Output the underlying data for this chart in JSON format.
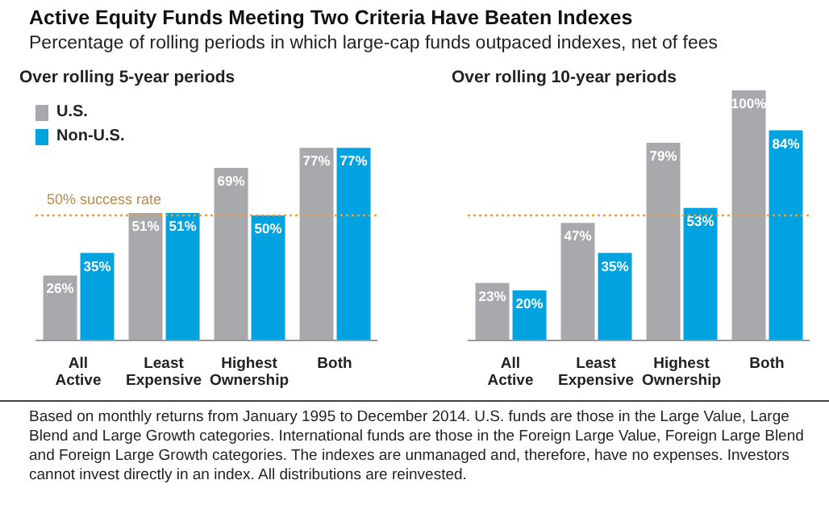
{
  "chart_data": [
    {
      "type": "bar",
      "title": "Active Equity Funds Meeting Two Criteria Have Beaten Indexes",
      "subtitle": "Percentage of rolling periods in which large-cap funds outpaced indexes, net of fees",
      "categories": [
        "All Active",
        "Least Expensive",
        "Highest Ownership",
        "Both"
      ],
      "series": [
        {
          "name": "U.S.",
          "color": "#a7a9ac",
          "values": [
            26,
            51,
            69,
            77
          ],
          "value_labels": [
            "26%",
            "51%",
            "69%",
            "77%"
          ]
        },
        {
          "name": "Non-U.S.",
          "color": "#00a3e0",
          "values": [
            35,
            51,
            50,
            77
          ],
          "value_labels": [
            "35%",
            "51%",
            "50%",
            "77%"
          ]
        }
      ],
      "tick_labels": "x",
      "legend": "top left",
      "ref_lines": [
        {
          "axis": "y",
          "value": 50,
          "label": "50% success rate",
          "color": "#e8a040",
          "line_style": "dotted"
        }
      ],
      "annotations": [
        "Over rolling 5-year periods",
        "Based on monthly returns from January 1995 to December 2014. U.S. funds are those in the Large Value, Large Blend and Large Growth categories. International funds are those in the Foreign Large Value, Foreign Large Blend and Foreign Large Growth categories. The indexes are unmanaged and, therefore, have no expenses. Investors cannot invest directly in an index. All distributions are reinvested."
      ]
    },
    {
      "type": "bar",
      "title": "Over rolling 10-year periods",
      "categories": [
        "All Active",
        "Least Expensive",
        "Highest Ownership",
        "Both"
      ],
      "series": [
        {
          "color": "#a7a9ac",
          "values": [
            23,
            47,
            79,
            100
          ],
          "value_labels": [
            "23%",
            "47%",
            "79%",
            "100%"
          ]
        },
        {
          "color": "#00a3e0",
          "values": [
            20,
            35,
            53,
            84
          ],
          "value_labels": [
            "20%",
            "35%",
            "53%",
            "84%"
          ]
        }
      ],
      "tick_labels": "x",
      "ref_lines": [
        {
          "axis": "y",
          "value": 50,
          "color": "#e8a040",
          "line_style": "dotted"
        }
      ]
    }
  ]
}
